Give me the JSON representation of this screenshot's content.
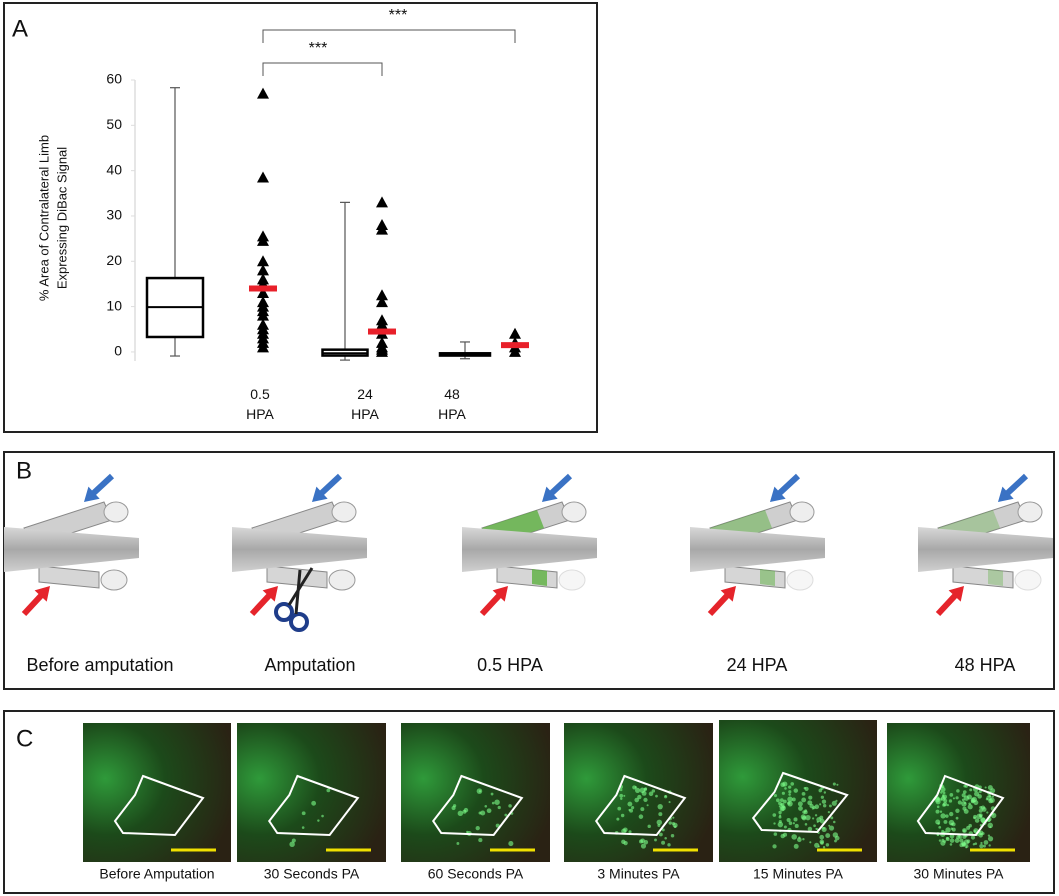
{
  "panel_labels": [
    "A",
    "B",
    "C"
  ],
  "chart_data": {
    "type": "box",
    "ylabel": [
      "% Area of Contralateral Limb",
      "Expressing DiBac Signal"
    ],
    "categories": [
      "0.5 HPA",
      "24 HPA",
      "48 HPA"
    ],
    "boxes": [
      {
        "min": -0.9,
        "q1": 3.3,
        "median": 9.9,
        "q3": 16.3,
        "max": 58.3
      },
      {
        "min": -1.8,
        "q1": -0.8,
        "median": -0.3,
        "q3": 0.5,
        "max": 33
      },
      {
        "min": -1.5,
        "q1": -0.8,
        "median": -0.5,
        "q3": -0.3,
        "max": 2.2
      }
    ],
    "points": [
      [
        57,
        38.5,
        25.5,
        24.5,
        20,
        18,
        16,
        15,
        13,
        11,
        10,
        9,
        8,
        6,
        5,
        4,
        3,
        2,
        1
      ],
      [
        33,
        28,
        27,
        12.5,
        11,
        7,
        6,
        4,
        2,
        1,
        0.5,
        0
      ],
      [
        4,
        2,
        1,
        0
      ]
    ],
    "means": [
      14,
      4.5,
      1.5
    ],
    "box_color": "#000000",
    "point_color": "#000000",
    "mean_color": "#e8202a",
    "ylim": [
      -2,
      60
    ],
    "yticks": [
      0,
      10,
      20,
      30,
      40,
      50,
      60
    ],
    "annotations": [
      "***",
      "***"
    ]
  },
  "illustration": {
    "captions": [
      "Before amputation",
      "Amputation",
      "0.5 HPA",
      "24 HPA",
      "48 HPA"
    ]
  },
  "micrographs": {
    "captions": [
      "Before Amputation",
      "30 Seconds PA",
      "60 Seconds PA",
      "3 Minutes PA",
      "15 Minutes PA",
      "30 Minutes PA"
    ]
  }
}
